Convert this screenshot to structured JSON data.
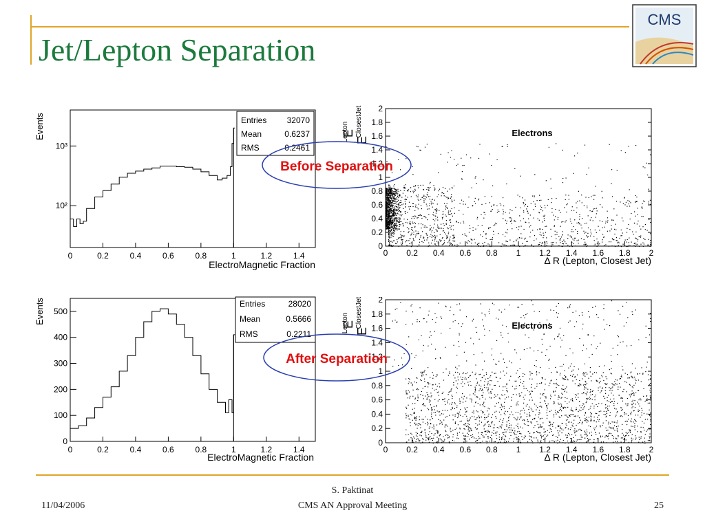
{
  "slide": {
    "title": "Jet/Lepton Separation",
    "logo_text": "CMS",
    "footer": {
      "date": "11/04/2006",
      "author": "S. Paktinat",
      "meeting": "CMS AN Approval Meeting",
      "page": "25"
    },
    "annotations": {
      "before": "Before Separation",
      "after": "After Separation"
    }
  },
  "colors": {
    "title": "#1b7a3c",
    "rule": "#e0a526",
    "annotation_text": "#e01010",
    "annotation_ellipse": "#2a3fb0"
  },
  "chart_data": [
    {
      "type": "line",
      "name": "before-em-fraction",
      "xlabel": "ElectroMagnetic Fraction",
      "ylabel": "Events",
      "xlim": [
        0,
        1.5
      ],
      "yscale": "log",
      "ylim": [
        20,
        4000
      ],
      "xticks": [
        "0",
        "0.2",
        "0.4",
        "0.6",
        "0.8",
        "1",
        "1.2",
        "1.4"
      ],
      "yticks": [
        "10²",
        "10³"
      ],
      "stats": [
        {
          "label": "Entries",
          "value": "32070"
        },
        {
          "label": "Mean",
          "value": "0.6237"
        },
        {
          "label": "RMS",
          "value": "0.2461"
        }
      ],
      "x": [
        0.0,
        0.02,
        0.04,
        0.06,
        0.08,
        0.1,
        0.15,
        0.2,
        0.25,
        0.3,
        0.35,
        0.4,
        0.45,
        0.5,
        0.55,
        0.6,
        0.65,
        0.7,
        0.75,
        0.8,
        0.85,
        0.9,
        0.93,
        0.96,
        0.98,
        0.99,
        1.0
      ],
      "y": [
        60,
        45,
        60,
        50,
        55,
        90,
        140,
        180,
        230,
        300,
        350,
        380,
        410,
        430,
        460,
        460,
        450,
        440,
        410,
        370,
        320,
        270,
        290,
        320,
        450,
        1100,
        2000
      ]
    },
    {
      "type": "scatter",
      "name": "before-dr",
      "title": "Electrons",
      "xlabel": "Δ R (Lepton, Closest Jet)",
      "ylabel_stack": [
        "Lepton",
        "E",
        "ClosestJet",
        "E"
      ],
      "xlim": [
        0,
        2
      ],
      "ylim": [
        0,
        2
      ],
      "xticks": [
        "0",
        "0.2",
        "0.4",
        "0.6",
        "0.8",
        "1",
        "1.2",
        "1.4",
        "1.6",
        "1.8",
        "2"
      ],
      "yticks": [
        "0",
        "0.2",
        "0.4",
        "0.6",
        "0.8",
        "1",
        "1.2",
        "1.4",
        "1.6",
        "1.8",
        "2"
      ],
      "distribution": "dense cluster near ΔR≈0 and EM fraction 0.4–0.8, sparse tail to larger ΔR"
    },
    {
      "type": "line",
      "name": "after-em-fraction",
      "xlabel": "ElectroMagnetic Fraction",
      "ylabel": "Events",
      "xlim": [
        0,
        1.5
      ],
      "ylim": [
        0,
        550
      ],
      "xticks": [
        "0",
        "0.2",
        "0.4",
        "0.6",
        "0.8",
        "1",
        "1.2",
        "1.4"
      ],
      "yticks": [
        "0",
        "100",
        "200",
        "300",
        "400",
        "500"
      ],
      "stats": [
        {
          "label": "Entries",
          "value": "28020"
        },
        {
          "label": "Mean",
          "value": "0.5666"
        },
        {
          "label": "RMS",
          "value": "0.2211"
        }
      ],
      "x": [
        0.0,
        0.05,
        0.1,
        0.15,
        0.2,
        0.25,
        0.3,
        0.35,
        0.4,
        0.45,
        0.5,
        0.55,
        0.6,
        0.65,
        0.7,
        0.75,
        0.8,
        0.85,
        0.9,
        0.95,
        0.97,
        0.99,
        1.0
      ],
      "y": [
        50,
        60,
        90,
        130,
        170,
        210,
        270,
        330,
        400,
        460,
        500,
        510,
        490,
        450,
        400,
        330,
        260,
        200,
        150,
        110,
        160,
        110,
        410
      ]
    },
    {
      "type": "scatter",
      "name": "after-dr",
      "title": "Electrons",
      "xlabel": "Δ R (Lepton, Closest Jet)",
      "ylabel_stack": [
        "Lepton",
        "E",
        "ClosestJet",
        "E"
      ],
      "xlim": [
        0,
        2
      ],
      "ylim": [
        0,
        2
      ],
      "xticks": [
        "0",
        "0.2",
        "0.4",
        "0.6",
        "0.8",
        "1",
        "1.2",
        "1.4",
        "1.6",
        "1.8",
        "2"
      ],
      "yticks": [
        "0",
        "0.2",
        "0.4",
        "0.6",
        "0.8",
        "1",
        "1.2",
        "1.4",
        "1.6",
        "1.8",
        "2"
      ],
      "distribution": "points spread across ΔR 0–2 and EM fraction 0–1, no cluster at small ΔR"
    }
  ]
}
